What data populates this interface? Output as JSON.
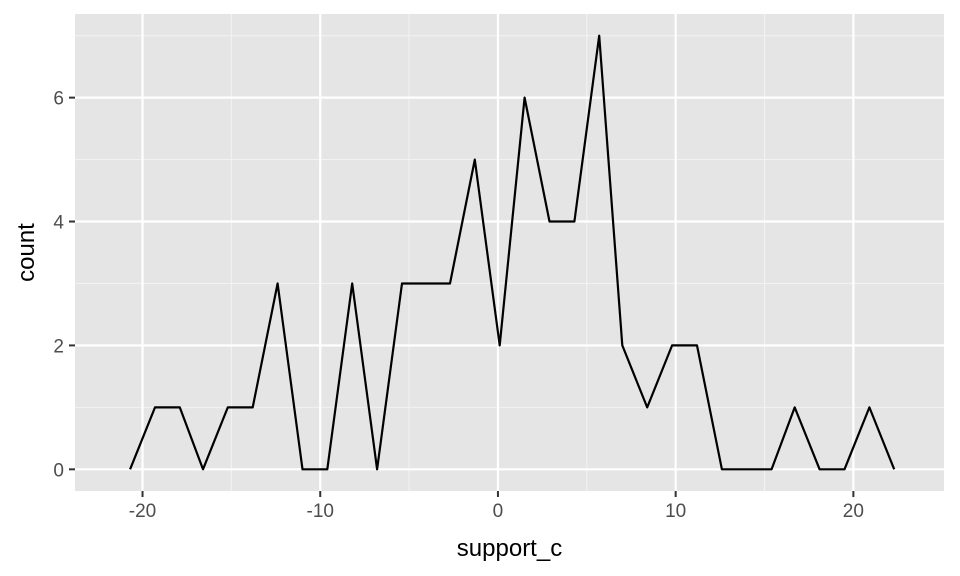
{
  "chart_data": {
    "type": "line",
    "title": "",
    "xlabel": "support_c",
    "ylabel": "count",
    "xlim": [
      -23.8,
      25.1
    ],
    "ylim": [
      -0.35,
      7.35
    ],
    "x_ticks": [
      -20,
      -10,
      0,
      10,
      20
    ],
    "x_minor": [
      -15,
      -5,
      5,
      15
    ],
    "y_ticks": [
      0,
      2,
      4,
      6
    ],
    "y_minor": [
      1,
      3,
      5,
      7
    ],
    "grid": true,
    "panel_background": "#e5e5e5",
    "line_color": "#000000",
    "series": [
      {
        "x": [
          -20.7,
          -19.3,
          -17.9,
          -16.6,
          -15.2,
          -13.8,
          -12.4,
          -11.0,
          -9.6,
          -8.2,
          -6.8,
          -5.4,
          -4.1,
          -2.7,
          -1.3,
          0.1,
          1.5,
          2.9,
          4.3,
          5.7,
          7.0,
          8.4,
          9.8,
          11.2,
          12.6,
          14.0,
          15.4,
          16.7,
          18.1,
          19.5,
          20.9,
          22.3
        ],
        "y": [
          0,
          1,
          1,
          0,
          1,
          1,
          3,
          0,
          0,
          3,
          0,
          3,
          3,
          3,
          5,
          2,
          6,
          4,
          4,
          7,
          2,
          1,
          2,
          2,
          0,
          0,
          0,
          1,
          0,
          0,
          1,
          0
        ]
      }
    ]
  }
}
